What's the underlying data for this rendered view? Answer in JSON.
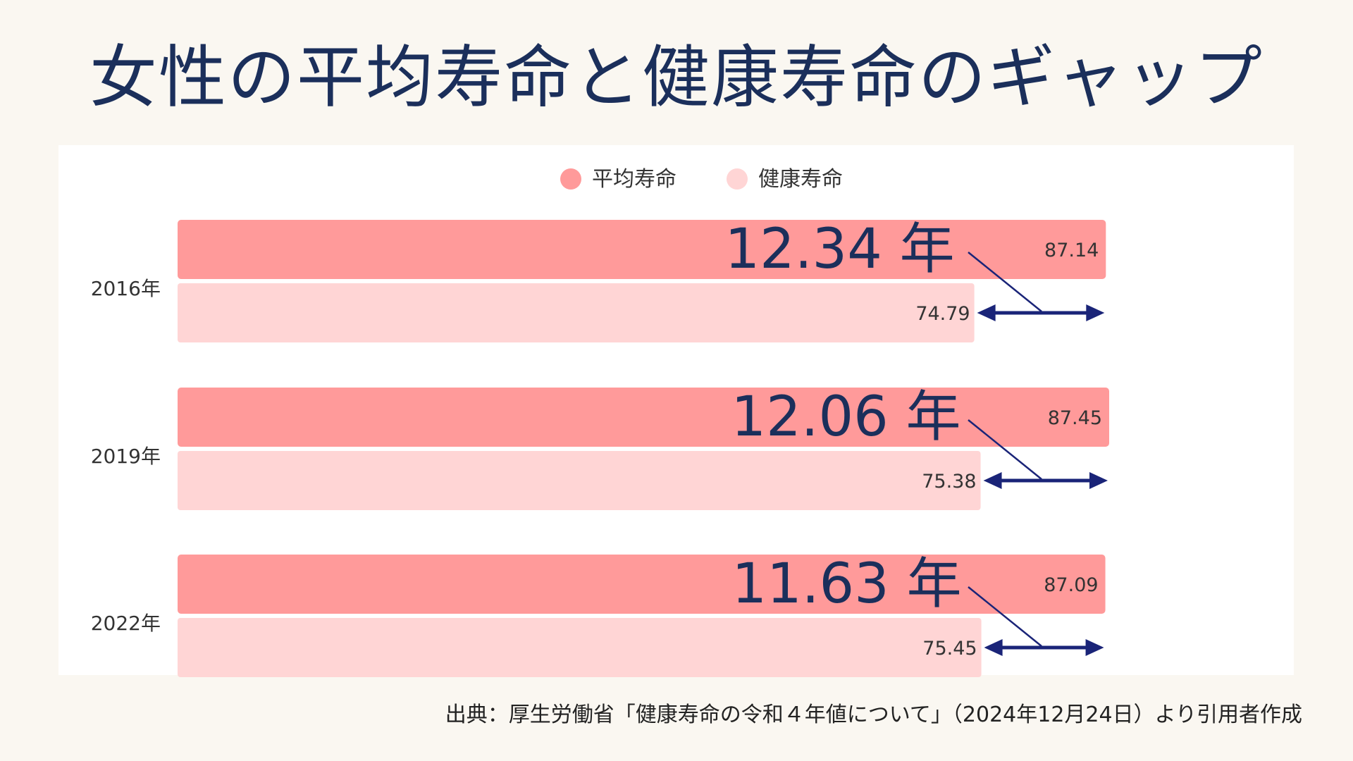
{
  "title": "女性の平均寿命と健康寿命のギャップ",
  "source": "出典：厚生労働省「健康寿命の令和４年値について」（2024年12月24日）より引用者作成",
  "colors": {
    "background": "#faf7f1",
    "panel": "#ffffff",
    "average": "#ff9a9a",
    "healthy": "#ffd5d5",
    "accent": "#1b2f5b",
    "arrow": "#1a2478"
  },
  "chart_data": {
    "type": "bar",
    "orientation": "horizontal",
    "categories": [
      "2016年",
      "2019年",
      "2022年"
    ],
    "series": [
      {
        "name": "平均寿命",
        "values": [
          87.14,
          87.45,
          87.09
        ],
        "color": "#ff9a9a"
      },
      {
        "name": "健康寿命",
        "values": [
          74.79,
          75.38,
          75.45
        ],
        "color": "#ffd5d5"
      }
    ],
    "value_labels": {
      "平均寿命": [
        "87.14",
        "87.45",
        "87.09"
      ],
      "健康寿命": [
        "74.79",
        "75.38",
        "75.45"
      ]
    },
    "gap_labels": [
      "12.34 年",
      "12.06 年",
      "11.63 年"
    ],
    "legend_position": "top-center",
    "xlim": [
      0,
      87.45
    ],
    "grid": false
  }
}
